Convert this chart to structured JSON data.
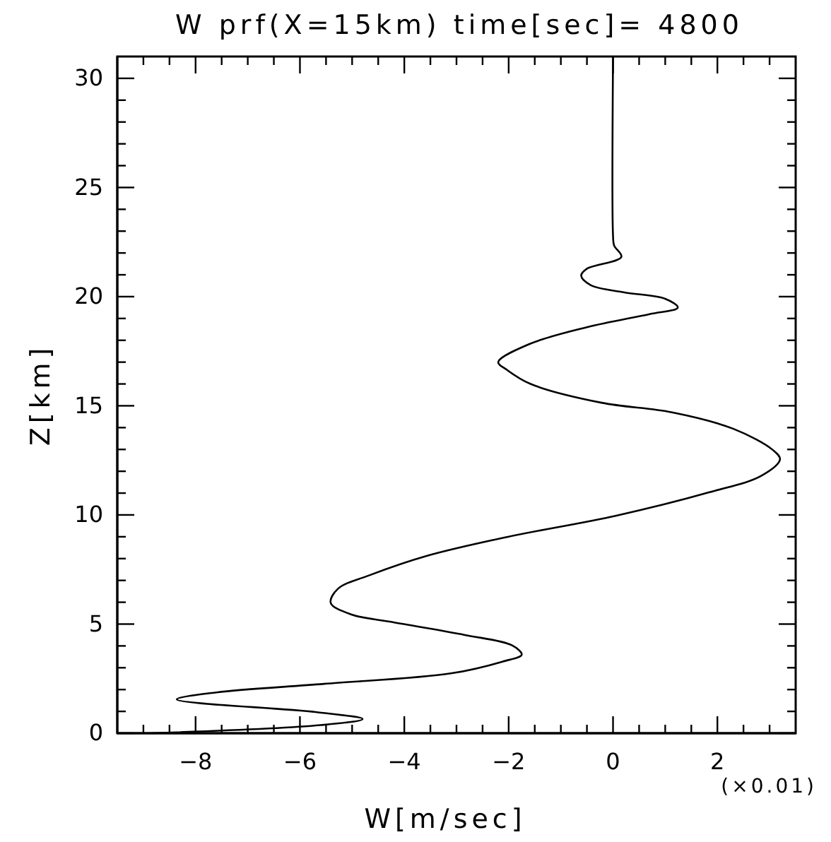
{
  "chart_data": {
    "type": "line",
    "title": "W prf(X=15km) time[sec]= 4800",
    "xlabel": "W[m/sec]",
    "ylabel": "Z[km]",
    "annotations": [
      "(×0.01)"
    ],
    "xlim": [
      -9.5,
      3.5
    ],
    "ylim": [
      0,
      31
    ],
    "xticks": [
      {
        "value": -9,
        "label": null
      },
      {
        "value": -8.5,
        "label": null
      },
      -8,
      {
        "value": -7.5,
        "label": null
      },
      {
        "value": -7,
        "label": null
      },
      {
        "value": -6.5,
        "label": null
      },
      -6,
      {
        "value": -5.5,
        "label": null
      },
      {
        "value": -5,
        "label": null
      },
      {
        "value": -4.5,
        "label": null
      },
      -4,
      {
        "value": -3.5,
        "label": null
      },
      {
        "value": -3,
        "label": null
      },
      {
        "value": -2.5,
        "label": null
      },
      -2,
      {
        "value": -1.5,
        "label": null
      },
      {
        "value": -1,
        "label": null
      },
      {
        "value": -0.5,
        "label": null
      },
      0,
      {
        "value": 0.5,
        "label": null
      },
      {
        "value": 1,
        "label": null
      },
      {
        "value": 1.5,
        "label": null
      },
      2,
      {
        "value": 2.5,
        "label": null
      },
      {
        "value": 3,
        "label": null
      }
    ],
    "yticks": [
      0,
      {
        "value": 1,
        "label": null
      },
      {
        "value": 2,
        "label": null
      },
      {
        "value": 3,
        "label": null
      },
      {
        "value": 4,
        "label": null
      },
      5,
      {
        "value": 6,
        "label": null
      },
      {
        "value": 7,
        "label": null
      },
      {
        "value": 8,
        "label": null
      },
      {
        "value": 9,
        "label": null
      },
      10,
      {
        "value": 11,
        "label": null
      },
      {
        "value": 12,
        "label": null
      },
      {
        "value": 13,
        "label": null
      },
      {
        "value": 14,
        "label": null
      },
      15,
      {
        "value": 16,
        "label": null
      },
      {
        "value": 17,
        "label": null
      },
      {
        "value": 18,
        "label": null
      },
      {
        "value": 19,
        "label": null
      },
      20,
      {
        "value": 21,
        "label": null
      },
      {
        "value": 22,
        "label": null
      },
      {
        "value": 23,
        "label": null
      },
      {
        "value": 24,
        "label": null
      },
      25,
      {
        "value": 26,
        "label": null
      },
      {
        "value": 27,
        "label": null
      },
      {
        "value": 28,
        "label": null
      },
      {
        "value": 29,
        "label": null
      },
      30
    ],
    "grid": false,
    "marker": "none",
    "line_style": "solid",
    "series": [
      {
        "color": "#000000",
        "x": [
          -8.85,
          -5.61,
          -4.8,
          -5.7,
          -8.36,
          -7.6,
          -5.54,
          -3.11,
          -2.12,
          -1.75,
          -1.94,
          -2.84,
          -4.28,
          -5.0,
          -5.41,
          -5.27,
          -4.64,
          -3.56,
          -2.03,
          0.05,
          1.85,
          2.84,
          3.2,
          3.06,
          2.3,
          1.13,
          -0.22,
          -1.58,
          -2.03,
          -2.2,
          -1.6,
          -0.5,
          0.7,
          1.24,
          1.0,
          0.2,
          -0.43,
          -0.61,
          -0.5,
          0.16,
          0.02,
          0.0,
          0.0
        ],
        "values": [
          0,
          0.37,
          0.65,
          0.97,
          1.55,
          1.87,
          2.26,
          2.74,
          3.28,
          3.6,
          4.03,
          4.5,
          5.11,
          5.43,
          5.97,
          6.62,
          7.26,
          8.13,
          8.99,
          9.96,
          11.04,
          11.79,
          12.55,
          12.98,
          13.95,
          14.7,
          15.14,
          16.0,
          16.64,
          17.0,
          17.83,
          18.6,
          19.2,
          19.5,
          19.9,
          20.2,
          20.53,
          20.96,
          21.28,
          21.82,
          22.35,
          22.79,
          31
        ]
      }
    ]
  }
}
